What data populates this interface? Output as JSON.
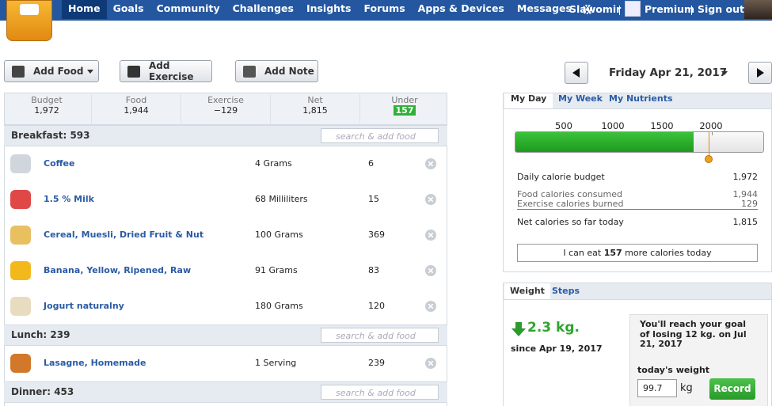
{
  "nav": {
    "items": [
      "Home",
      "Goals",
      "Community",
      "Challenges",
      "Insights",
      "Forums",
      "Apps & Devices",
      "Messages"
    ],
    "user": "Slawomir",
    "premium": "Premium",
    "signout": "Sign out"
  },
  "toolbar": {
    "buttons": [
      "Add Food",
      "Add Exercise",
      "Add Note"
    ],
    "date": "Friday Apr 21, 2017"
  },
  "summary": [
    {
      "label": "Budget",
      "value": "1,972"
    },
    {
      "label": "Food",
      "value": "1,944"
    },
    {
      "label": "Exercise",
      "value": "−129"
    },
    {
      "label": "Net",
      "value": "1,815"
    },
    {
      "label": "Under",
      "value": "157"
    }
  ],
  "meals": [
    {
      "title": "Breakfast: 593",
      "search": "search & add food",
      "items": [
        {
          "name": "Coffee",
          "amount": "4 Grams",
          "calories": 6
        },
        {
          "name": "1.5 % Milk",
          "amount": "68 Milliliters",
          "calories": 15
        },
        {
          "name": "Cereal, Muesli, Dried Fruit & Nut",
          "amount": "100 Grams",
          "calories": 369
        },
        {
          "name": "Banana, Yellow, Ripened, Raw",
          "amount": "91 Grams",
          "calories": 83
        },
        {
          "name": "Jogurt naturalny",
          "amount": "180 Grams",
          "calories": 120
        }
      ]
    },
    {
      "title": "Lunch: 239",
      "search": "search & add food",
      "items": [
        {
          "name": "Lasagne, Homemade",
          "amount": "1 Serving",
          "calories": 239
        }
      ]
    },
    {
      "title": "Dinner: 453",
      "search": "search & add food",
      "items": []
    }
  ],
  "day": {
    "tabs": [
      "My Day",
      "My Week",
      "My Nutrients"
    ],
    "ticks": [
      500,
      1000,
      1500,
      2000
    ],
    "rows": [
      {
        "label": "Daily calorie budget",
        "value": "1,972"
      },
      {
        "label": "Food calories consumed",
        "value": "1,944"
      },
      {
        "label": "Exercise calories burned",
        "value": "129"
      },
      {
        "label": "Net calories so far today",
        "value": "1,815"
      }
    ],
    "message": [
      "I can eat ",
      "157",
      " more calories today"
    ]
  },
  "weight": {
    "tabs": [
      "Weight",
      "Steps"
    ],
    "change": "2.3 kg.",
    "since": "since Apr 19, 2017",
    "goal": "You'll reach your goal of losing 12 kg. on Jul 21, 2017",
    "label": "today's weight",
    "input": "99.7",
    "unit": "kg",
    "button": "Record"
  }
}
